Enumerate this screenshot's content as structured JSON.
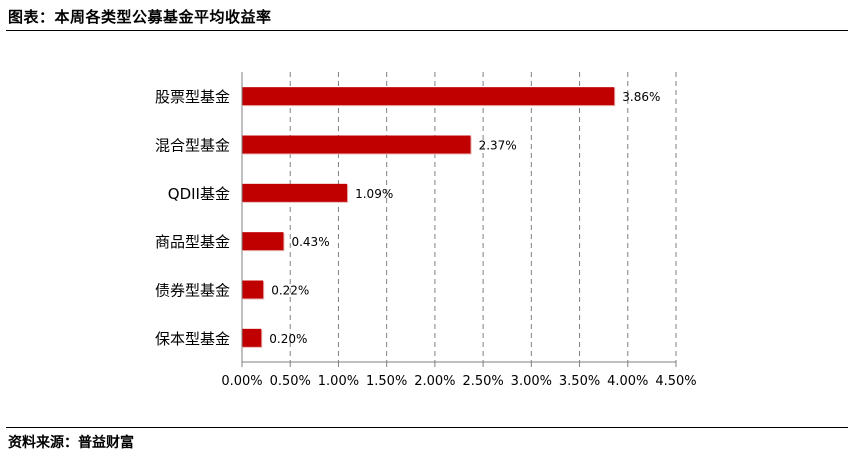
{
  "header": {
    "title": "图表：本周各类型公募基金平均收益率"
  },
  "footer": {
    "source": "资料来源：普益财富"
  },
  "chart_data": {
    "type": "bar",
    "orientation": "horizontal",
    "title": "",
    "xlabel": "",
    "ylabel": "",
    "categories": [
      "股票型基金",
      "混合型基金",
      "QDII基金",
      "商品型基金",
      "债券型基金",
      "保本型基金"
    ],
    "values": [
      3.86,
      2.37,
      1.09,
      0.43,
      0.22,
      0.2
    ],
    "value_labels": [
      "3.86%",
      "2.37%",
      "1.09%",
      "0.43%",
      "0.22%",
      "0.20%"
    ],
    "xlim": [
      0,
      4.5
    ],
    "xticks": [
      0,
      0.5,
      1.0,
      1.5,
      2.0,
      2.5,
      3.0,
      3.5,
      4.0,
      4.5
    ],
    "xtick_labels": [
      "0.00%",
      "0.50%",
      "1.00%",
      "1.50%",
      "2.00%",
      "2.50%",
      "3.00%",
      "3.50%",
      "4.00%",
      "4.50%"
    ],
    "grid": "vertical-dashed",
    "legend": "none",
    "bar_color": "#C00000"
  }
}
